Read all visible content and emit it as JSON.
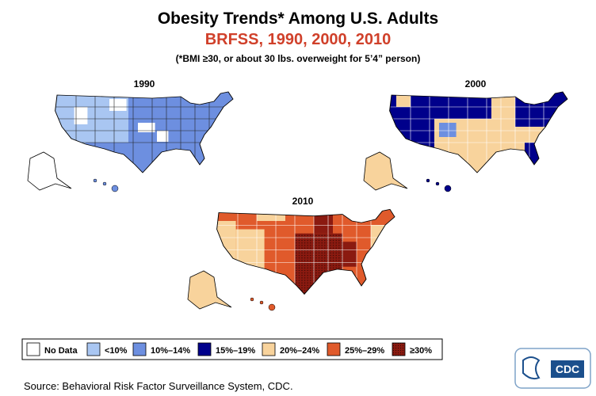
{
  "header": {
    "title": "Obesity Trends* Among U.S. Adults",
    "subtitle": "BRFSS, 1990, 2000, 2010",
    "note": "(*BMI ≥30, or about 30 lbs. overweight for 5’4” person)"
  },
  "maps": [
    {
      "label": "1990"
    },
    {
      "label": "2000"
    },
    {
      "label": "2010"
    }
  ],
  "legend": [
    {
      "label": "No Data",
      "color": "#ffffff"
    },
    {
      "label": "<10%",
      "color": "#a9c6f2"
    },
    {
      "label": "10%–14%",
      "color": "#6d8fe0"
    },
    {
      "label": "15%–19%",
      "color": "#00008b"
    },
    {
      "label": "20%–24%",
      "color": "#f8d39c"
    },
    {
      "label": "25%–29%",
      "color": "#e05a2b"
    },
    {
      "label": "≥30%",
      "color": "#8b1a10"
    }
  ],
  "source": "Source: Behavioral Risk Factor Surveillance System, CDC.",
  "logo": "CDC"
}
